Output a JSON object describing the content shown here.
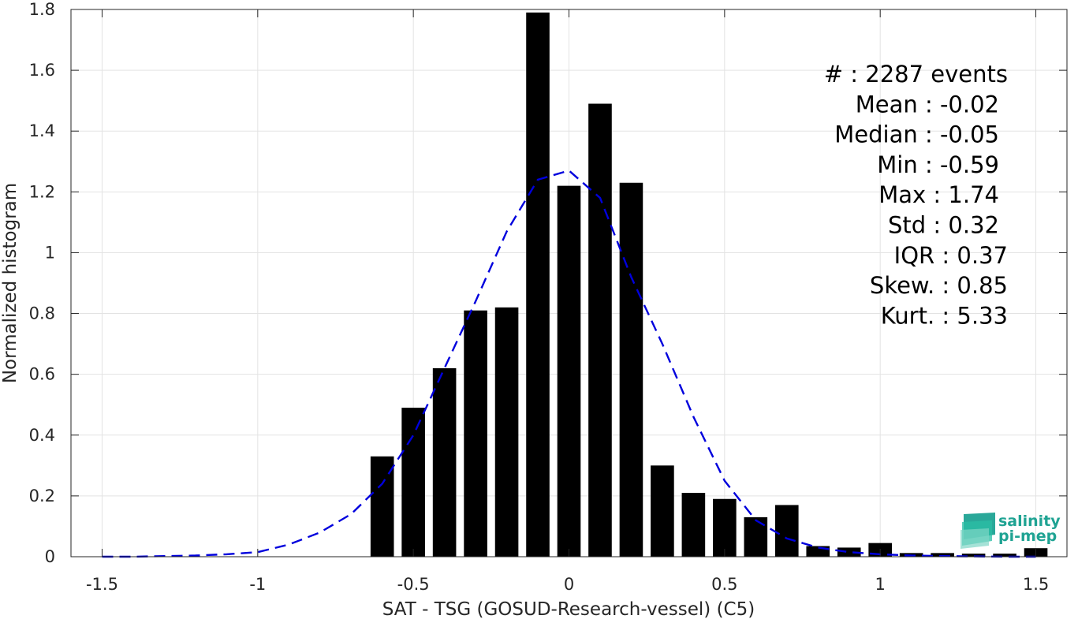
{
  "chart_data": {
    "type": "bar",
    "xlabel": "SAT - TSG (GOSUD-Research-vessel) (C5)",
    "ylabel": "Normalized histogram",
    "xlim": [
      -1.6,
      1.6
    ],
    "ylim": [
      0,
      1.8
    ],
    "x_ticks": [
      -1.5,
      -1,
      -0.5,
      0,
      0.5,
      1,
      1.5
    ],
    "x_tick_labels": [
      "-1.5",
      "-1",
      "-0.5",
      "0",
      "0.5",
      "1",
      "1.5"
    ],
    "y_ticks": [
      0,
      0.2,
      0.4,
      0.6,
      0.8,
      1,
      1.2,
      1.4,
      1.6,
      1.8
    ],
    "y_tick_labels": [
      "0",
      "0.2",
      "0.4",
      "0.6",
      "0.8",
      "1",
      "1.2",
      "1.4",
      "1.6",
      "1.8"
    ],
    "grid": true,
    "bar_width": 0.075,
    "bars": {
      "x": [
        -0.6,
        -0.5,
        -0.4,
        -0.3,
        -0.2,
        -0.1,
        0.0,
        0.1,
        0.2,
        0.3,
        0.4,
        0.5,
        0.6,
        0.7,
        0.8,
        0.9,
        1.0,
        1.1,
        1.2,
        1.3,
        1.4,
        1.5
      ],
      "values": [
        0.33,
        0.49,
        0.62,
        0.81,
        0.82,
        1.79,
        1.22,
        1.49,
        1.23,
        0.3,
        0.21,
        0.19,
        0.13,
        0.17,
        0.035,
        0.03,
        0.045,
        0.012,
        0.012,
        0.01,
        0.01,
        0.028
      ],
      "color": "#000000"
    },
    "fit_curve": {
      "style": "dashed",
      "color": "#0000dd",
      "x": [
        -1.5,
        -1.4,
        -1.3,
        -1.2,
        -1.1,
        -1.0,
        -0.9,
        -0.8,
        -0.7,
        -0.6,
        -0.5,
        -0.4,
        -0.3,
        -0.2,
        -0.1,
        0.0,
        0.1,
        0.2,
        0.3,
        0.4,
        0.5,
        0.6,
        0.7,
        0.8,
        0.9,
        1.0,
        1.1,
        1.2,
        1.3,
        1.4,
        1.5
      ],
      "y": [
        0.0,
        0.0,
        0.002,
        0.004,
        0.008,
        0.015,
        0.04,
        0.08,
        0.14,
        0.24,
        0.4,
        0.62,
        0.84,
        1.07,
        1.24,
        1.27,
        1.18,
        0.92,
        0.7,
        0.46,
        0.25,
        0.12,
        0.06,
        0.03,
        0.015,
        0.008,
        0.004,
        0.002,
        0.001,
        0.0,
        0.0
      ]
    },
    "annotations": [
      {
        "label": "#",
        "sep": " : ",
        "value": "2287 events"
      },
      {
        "label": "Mean",
        "sep": " : ",
        "value": "-0.02"
      },
      {
        "label": "Median",
        "sep": " : ",
        "value": "-0.05"
      },
      {
        "label": "Min",
        "sep": " : ",
        "value": "-0.59"
      },
      {
        "label": "Max",
        "sep": " : ",
        "value": "1.74"
      },
      {
        "label": "Std",
        "sep": " : ",
        "value": "0.32"
      },
      {
        "label": "IQR",
        "sep": " : ",
        "value": "0.37"
      },
      {
        "label": "Skew.",
        "sep": " : ",
        "value": "0.85"
      },
      {
        "label": "Kurt.",
        "sep": " : ",
        "value": "5.33"
      }
    ]
  },
  "logo": {
    "line1": "salinity",
    "line2": "pi-mep",
    "color": "#1fa393"
  }
}
